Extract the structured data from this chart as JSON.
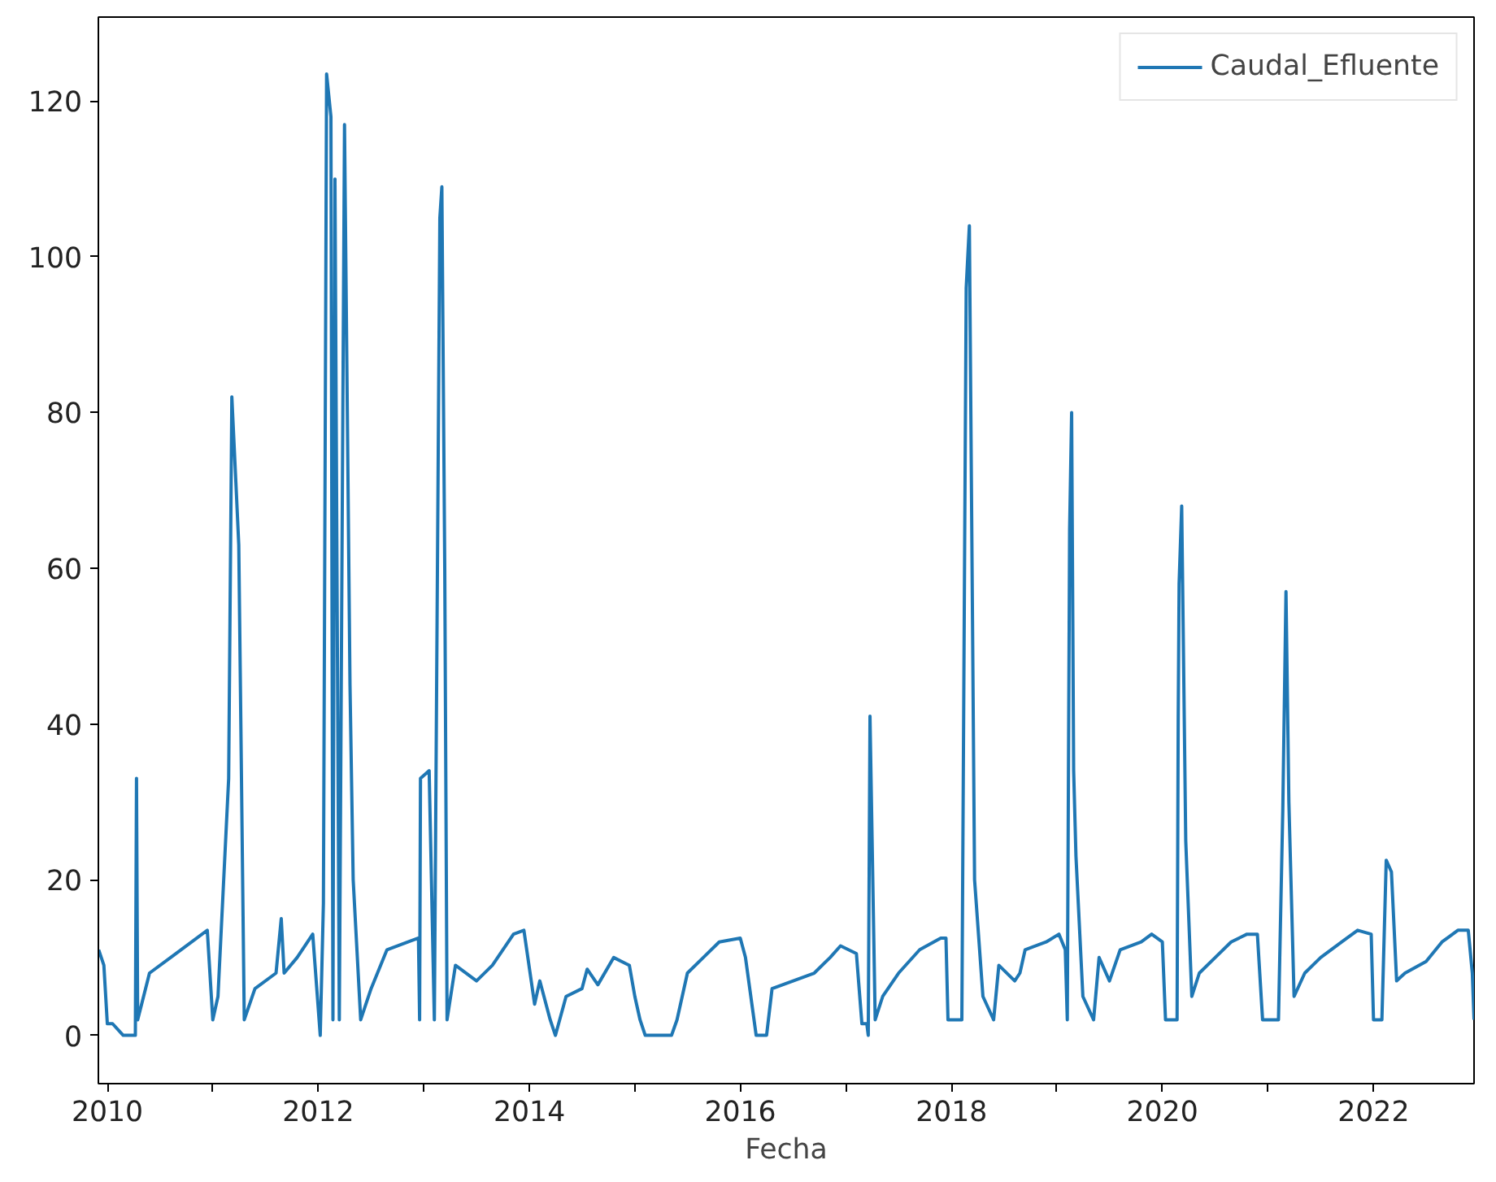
{
  "chart_data": {
    "type": "line",
    "xlabel": "Fecha",
    "legend": "top right",
    "grid": false,
    "line_style": "solid",
    "marker": "none",
    "xlim": [
      "2009-12-01",
      "2022-12-15"
    ],
    "ylim": [
      -6.2,
      130.8
    ],
    "xticks": [
      "2010",
      {
        "value": "2011",
        "label": null
      },
      "2012",
      {
        "value": "2013",
        "label": null
      },
      "2014",
      {
        "value": "2015",
        "label": null
      },
      "2016",
      {
        "value": "2017",
        "label": null
      },
      "2018",
      {
        "value": "2019",
        "label": null
      },
      "2020",
      {
        "value": "2021",
        "label": null
      },
      "2022"
    ],
    "yticks": [
      0,
      20,
      40,
      60,
      80,
      100,
      120
    ],
    "x": [
      "2009-12-02",
      "2009-12-20",
      "2010-01-01",
      "2010-01-19",
      "2010-02-25",
      "2010-04-08",
      "2010-04-12",
      "2010-04-16",
      "2010-05-27",
      "2010-08-08",
      "2010-10-20",
      "2010-12-13",
      "2011-01-01",
      "2011-01-19",
      "2011-02-25",
      "2011-03-08",
      "2011-03-22",
      "2011-04-01",
      "2011-04-20",
      "2011-05-27",
      "2011-08-08",
      "2011-08-26",
      "2011-09-05",
      "2011-10-20",
      "2011-12-13",
      "2012-01-08",
      "2012-01-19",
      "2012-01-30",
      "2012-02-14",
      "2012-02-21",
      "2012-02-28",
      "2012-03-14",
      "2012-04-01",
      "2012-04-20",
      "2012-05-01",
      "2012-05-27",
      "2012-07-02",
      "2012-08-26",
      "2012-11-07",
      "2012-12-13",
      "2012-12-17",
      "2012-12-20",
      "2013-01-19",
      "2013-02-06",
      "2013-02-25",
      "2013-03-04",
      "2013-03-14",
      "2013-03-22",
      "2013-04-20",
      "2013-07-02",
      "2013-08-26",
      "2013-11-07",
      "2013-12-13",
      "2014-01-19",
      "2014-02-06",
      "2014-03-14",
      "2014-04-01",
      "2014-05-08",
      "2014-07-02",
      "2014-07-20",
      "2014-08-26",
      "2014-10-20",
      "2014-12-13",
      "2015-01-01",
      "2015-01-19",
      "2015-02-06",
      "2015-05-08",
      "2015-05-27",
      "2015-07-02",
      "2015-08-26",
      "2015-10-20",
      "2016-01-01",
      "2016-01-19",
      "2016-02-25",
      "2016-04-01",
      "2016-04-20",
      "2016-07-02",
      "2016-09-13",
      "2016-11-07",
      "2016-12-13",
      "2017-02-06",
      "2017-02-25",
      "2017-03-14",
      "2017-03-19",
      "2017-03-25",
      "2017-04-12",
      "2017-05-08",
      "2017-07-02",
      "2017-09-13",
      "2017-11-25",
      "2017-12-13",
      "2017-12-20",
      "2018-02-06",
      "2018-02-21",
      "2018-03-04",
      "2018-03-22",
      "2018-04-20",
      "2018-05-27",
      "2018-06-14",
      "2018-08-08",
      "2018-08-26",
      "2018-09-13",
      "2018-11-25",
      "2019-01-08",
      "2019-01-30",
      "2019-02-06",
      "2019-02-14",
      "2019-02-21",
      "2019-02-28",
      "2019-03-08",
      "2019-04-01",
      "2019-05-08",
      "2019-05-27",
      "2019-07-02",
      "2019-08-08",
      "2019-10-20",
      "2019-11-25",
      "2020-01-01",
      "2020-01-12",
      "2020-02-21",
      "2020-02-25",
      "2020-02-28",
      "2020-03-08",
      "2020-03-22",
      "2020-04-12",
      "2020-05-08",
      "2020-07-02",
      "2020-08-26",
      "2020-10-20",
      "2020-11-25",
      "2020-12-13",
      "2021-02-06",
      "2021-02-21",
      "2021-03-04",
      "2021-03-14",
      "2021-04-01",
      "2021-05-08",
      "2021-07-02",
      "2021-09-13",
      "2021-11-07",
      "2021-12-24",
      "2022-01-01",
      "2022-01-30",
      "2022-02-14",
      "2022-03-04",
      "2022-03-22",
      "2022-04-20",
      "2022-07-02",
      "2022-08-26",
      "2022-10-20",
      "2022-11-25",
      "2022-12-09",
      "2022-12-15"
    ],
    "series": [
      {
        "name": "Caudal_Efluente",
        "color": "#1f77b4",
        "values": [
          11,
          9,
          1.5,
          1.5,
          0,
          0,
          33,
          2,
          8,
          10,
          12,
          13.5,
          2,
          5,
          33,
          82,
          71,
          63,
          2,
          6,
          8,
          15,
          8,
          10,
          13,
          0,
          17,
          123.5,
          118,
          2,
          110,
          2,
          117,
          45,
          20,
          2,
          6,
          11,
          12,
          12.5,
          2,
          33,
          34,
          2,
          105,
          109,
          60,
          2,
          9,
          7,
          9,
          13,
          13.5,
          4,
          7,
          2,
          0,
          5,
          6,
          8.5,
          6.5,
          10,
          9,
          5,
          2,
          0,
          0,
          2,
          8,
          10,
          12,
          12.5,
          10,
          0,
          0,
          6,
          7,
          8,
          10,
          11.5,
          10.5,
          1.5,
          1.5,
          0,
          41,
          2,
          5,
          8,
          11,
          12.5,
          12.5,
          2,
          2,
          96,
          104,
          20,
          5,
          2,
          9,
          7,
          8,
          11,
          12,
          13,
          11,
          2,
          65,
          80,
          34,
          23,
          5,
          2,
          10,
          7,
          11,
          12,
          13,
          12,
          2,
          2,
          41,
          58,
          68,
          25,
          5,
          8,
          10,
          12,
          13,
          13,
          2,
          2,
          29,
          57,
          30,
          5,
          8,
          10,
          12,
          13.5,
          13,
          2,
          2,
          22.5,
          21,
          7,
          8,
          9.5,
          12,
          13.5,
          13.5,
          8,
          2
        ]
      }
    ]
  }
}
